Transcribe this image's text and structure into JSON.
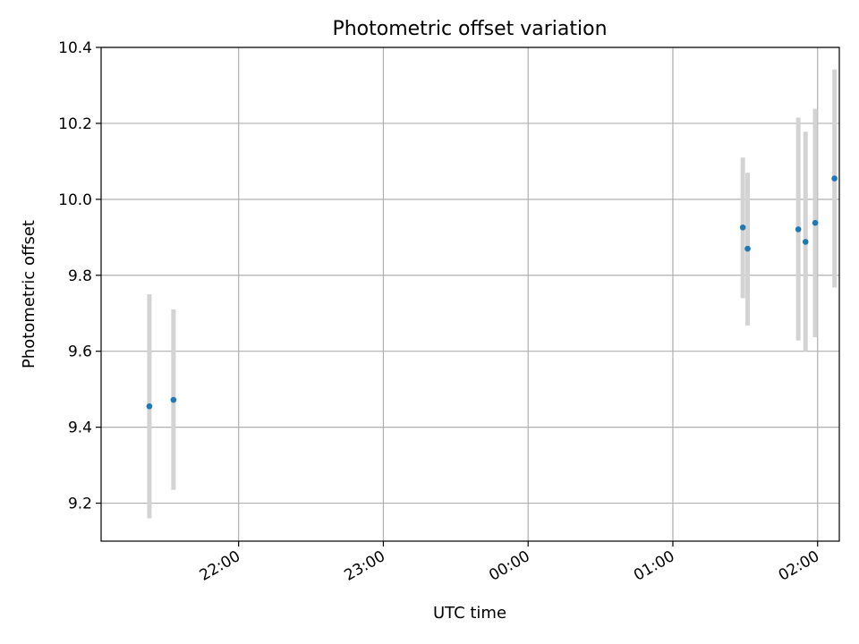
{
  "chart_data": {
    "type": "scatter",
    "title": "Photometric offset variation",
    "xlabel": "UTC time",
    "ylabel": "Photometric offset",
    "x_axis_type": "time",
    "xlim": [
      "21:03",
      "02:09"
    ],
    "ylim": [
      9.1,
      10.4
    ],
    "x_ticks": [
      "22:00",
      "23:00",
      "00:00",
      "01:00",
      "02:00"
    ],
    "y_ticks": [
      "9.2",
      "9.4",
      "9.6",
      "9.8",
      "10.0",
      "10.2",
      "10.4"
    ],
    "grid": true,
    "legend": "none",
    "marker_color": "#1f77b4",
    "errorbar_color": "#d3d3d3",
    "points": [
      {
        "time": "21:23",
        "y": 9.455,
        "yerr_low": 9.16,
        "yerr_high": 9.75
      },
      {
        "time": "21:33",
        "y": 9.472,
        "yerr_low": 9.235,
        "yerr_high": 9.71
      },
      {
        "time": "01:29",
        "y": 9.926,
        "yerr_low": 9.74,
        "yerr_high": 10.11
      },
      {
        "time": "01:31",
        "y": 9.87,
        "yerr_low": 9.668,
        "yerr_high": 10.07
      },
      {
        "time": "01:52",
        "y": 9.921,
        "yerr_low": 9.628,
        "yerr_high": 10.215
      },
      {
        "time": "01:55",
        "y": 9.888,
        "yerr_low": 9.6,
        "yerr_high": 10.178
      },
      {
        "time": "01:59",
        "y": 9.938,
        "yerr_low": 9.637,
        "yerr_high": 10.238
      },
      {
        "time": "02:07",
        "y": 10.055,
        "yerr_low": 9.768,
        "yerr_high": 10.342
      }
    ]
  }
}
